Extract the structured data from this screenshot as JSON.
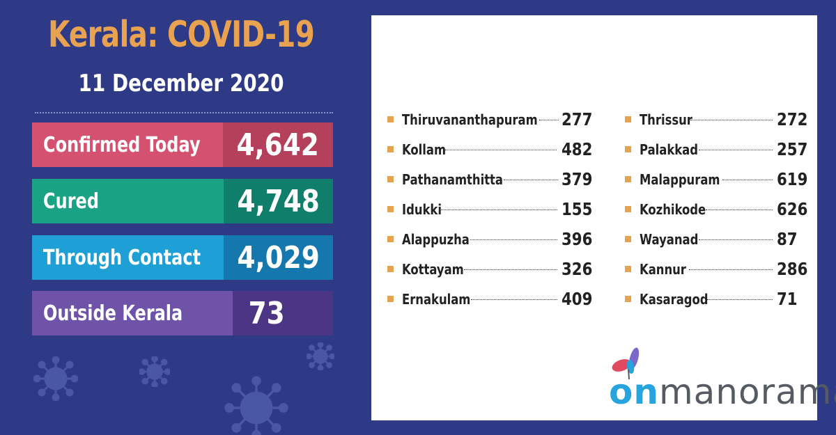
{
  "header": {
    "title": "Kerala: COVID-19",
    "date": "11 December 2020"
  },
  "stats": [
    {
      "label": "Confirmed Today",
      "value": "4,642",
      "color": "#d4526f"
    },
    {
      "label": "Cured",
      "value": "4,748",
      "color": "#1aa284"
    },
    {
      "label": "Through Contact",
      "value": "4,029",
      "color": "#1e9fd6"
    },
    {
      "label": "Outside Kerala",
      "value": "73",
      "color": "#6e53a8"
    }
  ],
  "districts_left": [
    {
      "name": "Thiruvananthapuram",
      "value": "277"
    },
    {
      "name": "Kollam",
      "value": "482"
    },
    {
      "name": "Pathanamthitta",
      "value": "379"
    },
    {
      "name": "Idukki",
      "value": "155"
    },
    {
      "name": "Alappuzha",
      "value": "396"
    },
    {
      "name": "Kottayam",
      "value": "326"
    },
    {
      "name": "Ernakulam",
      "value": "409"
    }
  ],
  "districts_right": [
    {
      "name": "Thrissur",
      "value": "272"
    },
    {
      "name": "Palakkad",
      "value": "257"
    },
    {
      "name": "Malappuram",
      "value": "619"
    },
    {
      "name": "Kozhikode",
      "value": "626"
    },
    {
      "name": "Wayanad",
      "value": "87"
    },
    {
      "name": "Kannur",
      "value": "286"
    },
    {
      "name": "Kasaragod",
      "value": "71"
    }
  ],
  "logo": {
    "prefix": "on",
    "suffix": "manorama"
  },
  "colors": {
    "background": "#2f3a86",
    "title": "#e9a24f",
    "bullet": "#e3a34f",
    "logo_blue": "#27a4dd",
    "logo_grey": "#555a63"
  },
  "icons": [
    "virus-icon",
    "butterfly-logo-icon"
  ]
}
